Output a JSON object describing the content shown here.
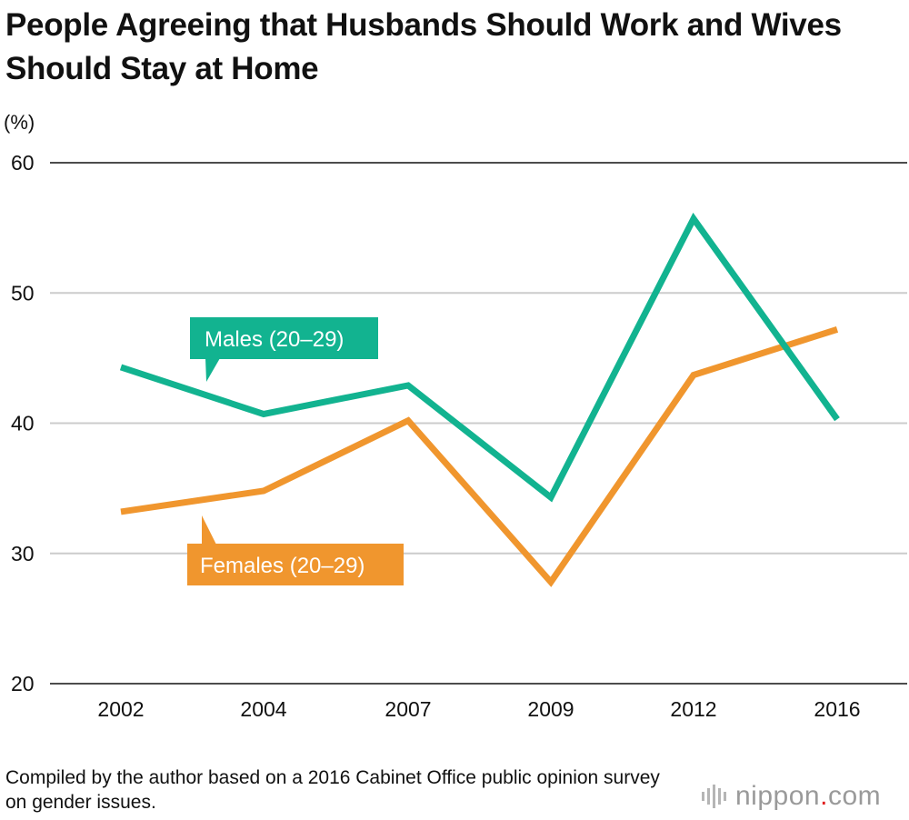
{
  "title": "People Agreeing that Husbands Should Work and Wives Should Stay at Home",
  "unit_label": "(%)",
  "source": "Compiled by the author based on a 2016 Cabinet Office public opinion survey on gender issues.",
  "brand": {
    "name": "nippon",
    "dot": ".",
    "suffix": "com"
  },
  "colors": {
    "males": "#12b390",
    "females": "#f0962e",
    "grid": "#cccccc",
    "axis": "#111111"
  },
  "chart_data": {
    "type": "line",
    "title": "People Agreeing that Husbands Should Work and Wives Should Stay at Home",
    "ylabel": "(%)",
    "xlabel": "",
    "categories": [
      "2002",
      "2004",
      "2007",
      "2009",
      "2012",
      "2016"
    ],
    "ylim": [
      20,
      60
    ],
    "yticks": [
      "20",
      "30",
      "40",
      "50",
      "60"
    ],
    "grid": true,
    "series": [
      {
        "name": "Males (20–29)",
        "values": [
          44.3,
          40.7,
          42.9,
          34.3,
          55.7,
          40.3
        ]
      },
      {
        "name": "Females (20–29)",
        "values": [
          33.2,
          34.8,
          40.2,
          27.8,
          43.7,
          47.2
        ]
      }
    ]
  }
}
